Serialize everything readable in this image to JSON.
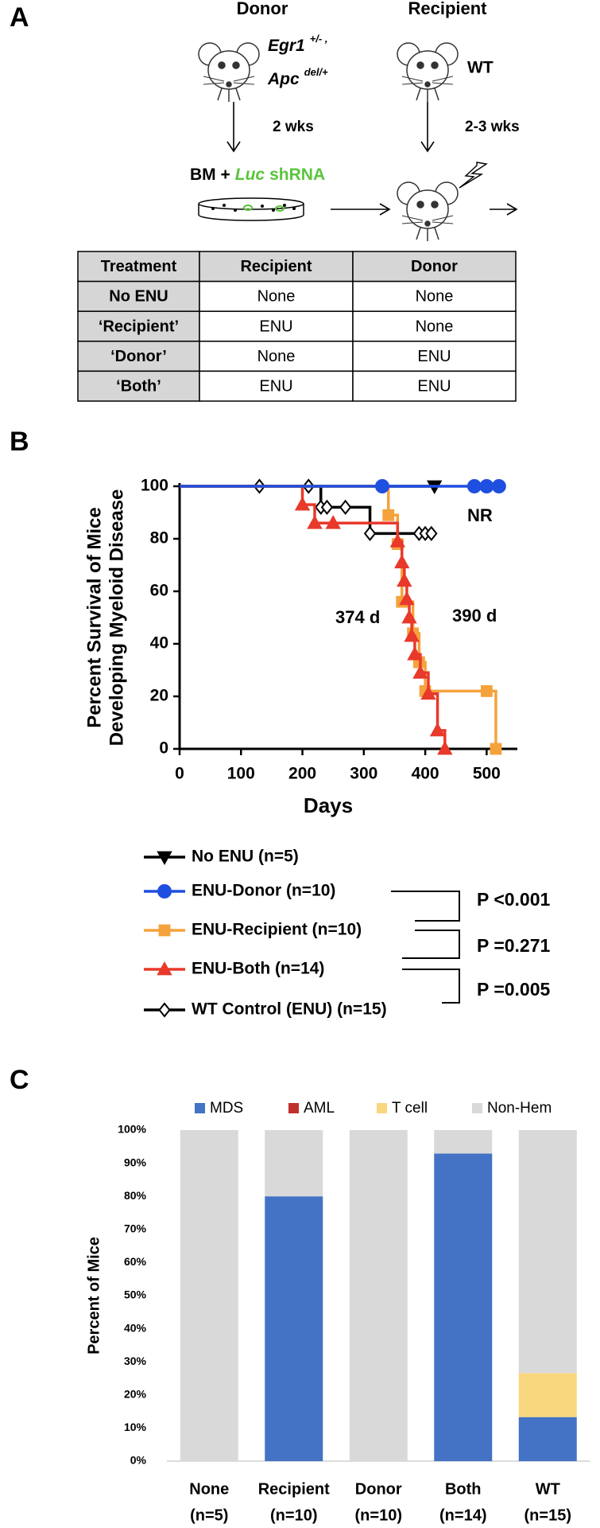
{
  "panel_labels": [
    "A",
    "B",
    "C"
  ],
  "panel_a": {
    "donor_label": "Donor",
    "recipient_label": "Recipient",
    "donor_gene1": "Egr1",
    "donor_sup1": "+/- ,",
    "donor_gene2": "Apc",
    "donor_sup2": "del/+",
    "recipient_genotype": "WT",
    "donor_wait": "2 wks",
    "recipient_wait": "2-3 wks",
    "bm_prefix": "BM +",
    "bm_gene": "Luc",
    "bm_suffix": "shRNA",
    "table": {
      "header": [
        "Treatment",
        "Recipient",
        "Donor"
      ],
      "rows": [
        [
          "No ENU",
          "None",
          "None"
        ],
        [
          "‘Recipient’",
          "ENU",
          "None"
        ],
        [
          "‘Donor’",
          "None",
          "ENU"
        ],
        [
          "‘Both’",
          "ENU",
          "ENU"
        ]
      ]
    }
  },
  "chart_data": [
    {
      "type": "survival",
      "y_label": [
        "Percent Survival of Mice",
        "Developing  Myeloid Disease"
      ],
      "x_label": "Days",
      "xlim": [
        0,
        550
      ],
      "xticks": [
        0,
        100,
        200,
        300,
        400,
        500
      ],
      "ylim": [
        0,
        100
      ],
      "yticks": [
        0,
        20,
        40,
        60,
        80,
        100
      ],
      "series": [
        {
          "name": "No ENU (n=5)",
          "color": "#000000",
          "marker": "triangle-down",
          "x": [
            0,
            415
          ],
          "values": [
            100,
            100
          ]
        },
        {
          "name": "ENU-Donor (n=10)",
          "color": "#1f4fe0",
          "marker": "circle",
          "x": [
            0,
            330,
            480,
            500,
            520
          ],
          "values": [
            100,
            100,
            100,
            100,
            100
          ]
        },
        {
          "name": "ENU-Recipient (n=10)",
          "color": "#f5a23c",
          "marker": "square",
          "x": [
            0,
            340,
            355,
            362,
            380,
            390,
            400,
            500,
            515
          ],
          "values": [
            100,
            89,
            78,
            56,
            44,
            33,
            22,
            22,
            0
          ]
        },
        {
          "name": "ENU-Both (n=14)",
          "color": "#e8392b",
          "marker": "triangle",
          "x": [
            0,
            200,
            220,
            250,
            355,
            362,
            366,
            370,
            374,
            378,
            383,
            392,
            405,
            420,
            432
          ],
          "values": [
            100,
            93,
            86,
            86,
            79,
            71,
            64,
            57,
            50,
            43,
            36,
            29,
            21,
            7,
            0
          ]
        },
        {
          "name": "WT Control (ENU) (n=15)",
          "color": "#000000",
          "marker": "diamond",
          "x": [
            0,
            130,
            210,
            230,
            240,
            270,
            310,
            390,
            400,
            410
          ],
          "values": [
            100,
            100,
            100,
            92,
            92,
            92,
            82,
            82,
            82,
            82
          ]
        }
      ],
      "annotations": [
        {
          "text": "374 d",
          "color": "#e8392b"
        },
        {
          "text": "390 d",
          "color": "#f5a23c"
        },
        {
          "text": "NR",
          "color": "#000000"
        }
      ],
      "p_values": [
        "P <0.001",
        "P =0.271",
        "P =0.005"
      ]
    },
    {
      "type": "stacked-bar",
      "y_label": "Percent of Mice",
      "categories": [
        "None",
        "Recipient",
        "Donor",
        "Both",
        "WT"
      ],
      "category_counts": [
        "(n=5)",
        "(n=10)",
        "(n=10)",
        "(n=14)",
        "(n=15)"
      ],
      "ylim": [
        0,
        100
      ],
      "yticks": [
        {
          "value": 0,
          "label": "0%"
        },
        {
          "value": 10,
          "label": "10%"
        },
        {
          "value": 20,
          "label": "20%"
        },
        {
          "value": 30,
          "label": "30%"
        },
        {
          "value": 40,
          "label": "40%"
        },
        {
          "value": 50,
          "label": "50%"
        },
        {
          "value": 60,
          "label": "60%"
        },
        {
          "value": 70,
          "label": "70%"
        },
        {
          "value": 80,
          "label": "80%"
        },
        {
          "value": 90,
          "label": "90%"
        },
        {
          "value": 100,
          "label": "100%"
        }
      ],
      "series": [
        {
          "name": "MDS",
          "color": "#4472c4",
          "values": [
            0,
            80,
            0,
            92.9,
            13.3
          ]
        },
        {
          "name": "AML",
          "color": "#c0302b",
          "values": [
            0,
            0,
            0,
            0,
            0
          ]
        },
        {
          "name": "T cell",
          "color": "#f9d77e",
          "values": [
            0,
            0,
            0,
            0,
            13.3
          ]
        },
        {
          "name": "Non-Hem",
          "color": "#d9d9d9",
          "values": [
            100,
            20,
            100,
            7.1,
            73.4
          ]
        }
      ]
    }
  ]
}
